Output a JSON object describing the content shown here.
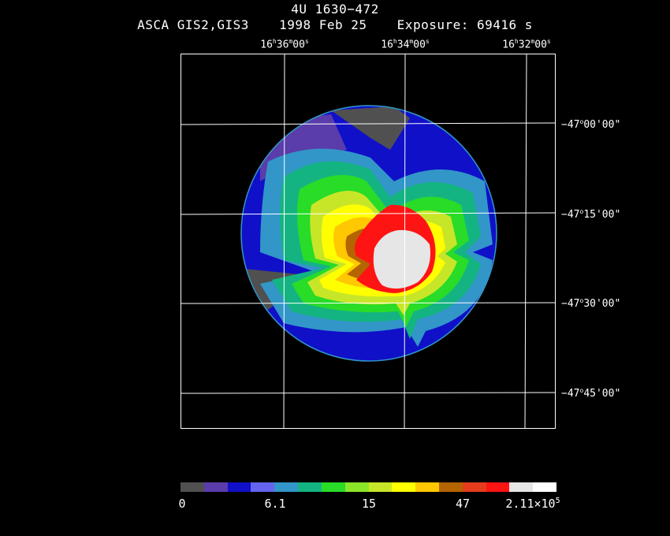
{
  "header": {
    "source_name": "4U 1630−472",
    "instrument": "ASCA GIS2,GIS3",
    "date": "1998 Feb 25",
    "exposure": "Exposure: 69416 s"
  },
  "ra_labels": [
    {
      "h": "16",
      "m": "36",
      "s": "00"
    },
    {
      "h": "16",
      "m": "34",
      "s": "00"
    },
    {
      "h": "16",
      "m": "32",
      "s": "00"
    }
  ],
  "dec_labels": [
    {
      "deg": "−47",
      "min": "00",
      "sec": "00"
    },
    {
      "deg": "−47",
      "min": "15",
      "sec": "00"
    },
    {
      "deg": "−47",
      "min": "30",
      "sec": "00"
    },
    {
      "deg": "−47",
      "min": "45",
      "sec": "00"
    }
  ],
  "colorbar": {
    "colors": [
      "#505050",
      "#5a3caa",
      "#1010c8",
      "#6464f0",
      "#3296c8",
      "#14b482",
      "#28dc28",
      "#8ce628",
      "#c8e628",
      "#ffff00",
      "#ffc800",
      "#b46400",
      "#e63c1e",
      "#ff1414",
      "#e6e6e6",
      "#ffffff"
    ],
    "ticks": [
      "0",
      "6.1",
      "15",
      "47"
    ],
    "max_mantissa": "2.11×10",
    "max_exponent": "5"
  }
}
